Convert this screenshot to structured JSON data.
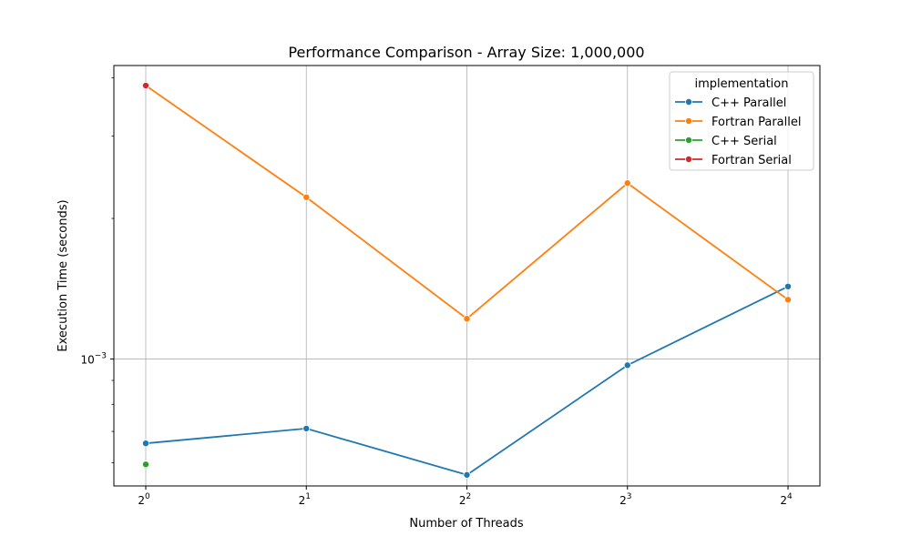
{
  "chart_data": {
    "type": "line",
    "title": "Performance Comparison - Array Size: 1,000,000",
    "xlabel": "Number of Threads",
    "ylabel": "Execution Time (seconds)",
    "x_scale": "log2",
    "y_scale": "log10",
    "x": [
      1,
      2,
      4,
      8,
      16
    ],
    "x_tick_labels": [
      {
        "base": "2",
        "exp": "0"
      },
      {
        "base": "2",
        "exp": "1"
      },
      {
        "base": "2",
        "exp": "2"
      },
      {
        "base": "2",
        "exp": "3"
      },
      {
        "base": "2",
        "exp": "4"
      }
    ],
    "y_tick_labels": [
      {
        "base": "10",
        "exp": "−3"
      }
    ],
    "y_major_tick_values": [
      0.001
    ],
    "y_minor_tick_values": [
      0.0006,
      0.0007,
      0.0008,
      0.0009,
      0.002,
      0.003,
      0.004
    ],
    "ylim": [
      0.000535,
      0.00425
    ],
    "grid": true,
    "legend": {
      "title": "implementation",
      "placement": "top-right"
    },
    "series": [
      {
        "name": "C++ Parallel",
        "color": "#1f77b4",
        "x": [
          1,
          2,
          4,
          8,
          16
        ],
        "values": [
          0.00066,
          0.00071,
          0.000565,
          0.00097,
          0.00143
        ]
      },
      {
        "name": "Fortran Parallel",
        "color": "#ff7f0e",
        "x": [
          1,
          2,
          4,
          8,
          16
        ],
        "values": [
          0.00385,
          0.00222,
          0.00122,
          0.00238,
          0.00134
        ]
      },
      {
        "name": "C++ Serial",
        "color": "#2ca02c",
        "x": [
          1
        ],
        "values": [
          0.000595
        ]
      },
      {
        "name": "Fortran Serial",
        "color": "#d62728",
        "x": [
          1
        ],
        "values": [
          0.00385
        ]
      }
    ]
  }
}
